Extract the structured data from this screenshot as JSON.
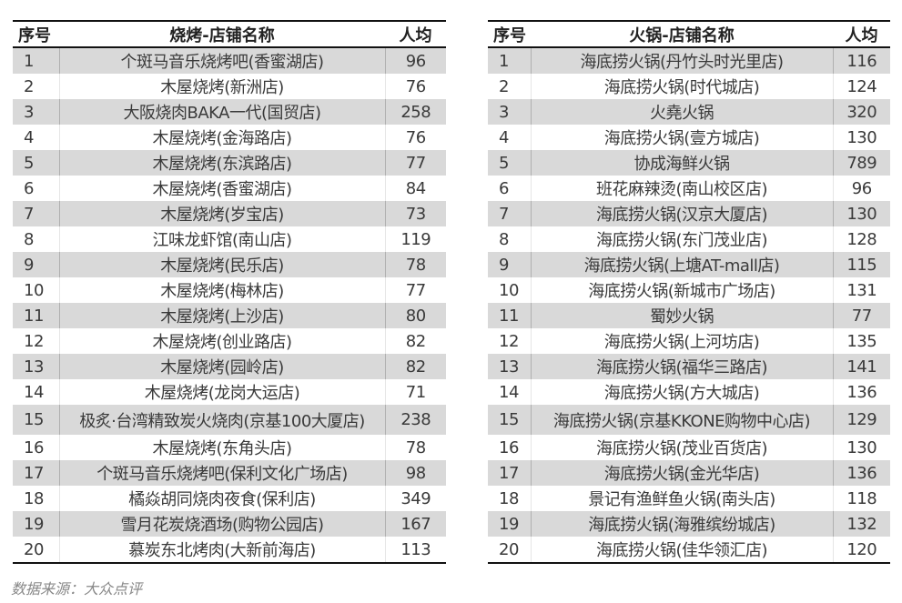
{
  "tables": [
    {
      "id": "bbq",
      "headers": {
        "index": "序号",
        "name": "烧烤-店铺名称",
        "avg": "人均"
      },
      "rows": [
        {
          "index": "1",
          "name": "个斑马音乐烧烤吧(香蜜湖店)",
          "avg": "96"
        },
        {
          "index": "2",
          "name": "木屋烧烤(新洲店)",
          "avg": "76"
        },
        {
          "index": "3",
          "name": "大阪烧肉BAKA一代(国贸店)",
          "avg": "258"
        },
        {
          "index": "4",
          "name": "木屋烧烤(金海路店)",
          "avg": "76"
        },
        {
          "index": "5",
          "name": "木屋烧烤(东滨路店)",
          "avg": "77"
        },
        {
          "index": "6",
          "name": "木屋烧烤(香蜜湖店)",
          "avg": "84"
        },
        {
          "index": "7",
          "name": "木屋烧烤(岁宝店)",
          "avg": "73"
        },
        {
          "index": "8",
          "name": "江味龙虾馆(南山店)",
          "avg": "119"
        },
        {
          "index": "9",
          "name": "木屋烧烤(民乐店)",
          "avg": "78"
        },
        {
          "index": "10",
          "name": "木屋烧烤(梅林店)",
          "avg": "77"
        },
        {
          "index": "11",
          "name": "木屋烧烤(上沙店)",
          "avg": "80"
        },
        {
          "index": "12",
          "name": "木屋烧烤(创业路店)",
          "avg": "82"
        },
        {
          "index": "13",
          "name": "木屋烧烤(园岭店)",
          "avg": "82"
        },
        {
          "index": "14",
          "name": "木屋烧烤(龙岗大运店)",
          "avg": "71"
        },
        {
          "index": "15",
          "name": "极炙·台湾精致炭火烧肉(京基100大厦店)",
          "avg": "238"
        },
        {
          "index": "16",
          "name": "木屋烧烤(东角头店)",
          "avg": "78"
        },
        {
          "index": "17",
          "name": "个斑马音乐烧烤吧(保利文化广场店)",
          "avg": "98"
        },
        {
          "index": "18",
          "name": "橘焱胡同烧肉夜食(保利店)",
          "avg": "349"
        },
        {
          "index": "19",
          "name": "雪月花炭烧酒场(购物公园店)",
          "avg": "167"
        },
        {
          "index": "20",
          "name": "慕炭东北烤肉(大新前海店)",
          "avg": "113"
        }
      ]
    },
    {
      "id": "hot",
      "headers": {
        "index": "序号",
        "name": "火锅-店铺名称",
        "avg": "人均"
      },
      "rows": [
        {
          "index": "1",
          "name": "海底捞火锅(丹竹头时光里店)",
          "avg": "116"
        },
        {
          "index": "2",
          "name": "海底捞火锅(时代城店)",
          "avg": "124"
        },
        {
          "index": "3",
          "name": "火堯火锅",
          "avg": "320"
        },
        {
          "index": "4",
          "name": "海底捞火锅(壹方城店)",
          "avg": "130"
        },
        {
          "index": "5",
          "name": "协成海鲜火锅",
          "avg": "789"
        },
        {
          "index": "6",
          "name": "班花麻辣烫(南山校区店)",
          "avg": "96"
        },
        {
          "index": "7",
          "name": "海底捞火锅(汉京大厦店)",
          "avg": "130"
        },
        {
          "index": "8",
          "name": "海底捞火锅(东门茂业店)",
          "avg": "128"
        },
        {
          "index": "9",
          "name": "海底捞火锅(上塘AT-mall店)",
          "avg": "115"
        },
        {
          "index": "10",
          "name": "海底捞火锅(新城市广场店)",
          "avg": "131"
        },
        {
          "index": "11",
          "name": "蜀妙火锅",
          "avg": "77"
        },
        {
          "index": "12",
          "name": "海底捞火锅(上河坊店)",
          "avg": "135"
        },
        {
          "index": "13",
          "name": "海底捞火锅(福华三路店)",
          "avg": "141"
        },
        {
          "index": "14",
          "name": "海底捞火锅(方大城店)",
          "avg": "136"
        },
        {
          "index": "15",
          "name": "海底捞火锅(京基KKONE购物中心店)",
          "avg": "129"
        },
        {
          "index": "16",
          "name": "海底捞火锅(茂业百货店)",
          "avg": "130"
        },
        {
          "index": "17",
          "name": "海底捞火锅(金光华店)",
          "avg": "136"
        },
        {
          "index": "18",
          "name": "景记有渔鲜鱼火锅(南头店)",
          "avg": "118"
        },
        {
          "index": "19",
          "name": "海底捞火锅(海雅缤纷城店)",
          "avg": "132"
        },
        {
          "index": "20",
          "name": "海底捞火锅(佳华领汇店)",
          "avg": "120"
        }
      ]
    }
  ],
  "colors": {
    "stripe": "#d9d9d9",
    "rule": "#111111",
    "text": "#3a3a3a"
  },
  "source": "数据来源：大众点评"
}
